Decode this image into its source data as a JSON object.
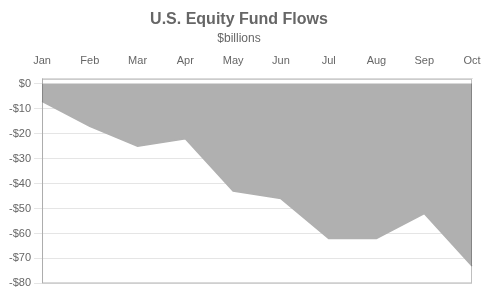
{
  "chart_data": {
    "type": "area",
    "title": "U.S. Equity Fund Flows",
    "subtitle": "$billions",
    "categories": [
      "Jan",
      "Feb",
      "Mar",
      "Apr",
      "May",
      "Jun",
      "Jul",
      "Aug",
      "Sep",
      "Oct"
    ],
    "values": [
      -7,
      -17,
      -25,
      -22,
      -43,
      -46,
      -62,
      -62,
      -52,
      -73
    ],
    "color": "#b0b0b0",
    "ylim": [
      -80,
      2
    ],
    "yticks": [
      {
        "value": 0,
        "label": "$0"
      },
      {
        "value": -10,
        "label": "-$10"
      },
      {
        "value": -20,
        "label": "-$20"
      },
      {
        "value": -30,
        "label": "-$30"
      },
      {
        "value": -40,
        "label": "-$40"
      },
      {
        "value": -50,
        "label": "-$50"
      },
      {
        "value": -60,
        "label": "-$60"
      },
      {
        "value": -70,
        "label": "-$70"
      },
      {
        "value": -80,
        "label": "-$80"
      }
    ],
    "grid": true
  }
}
